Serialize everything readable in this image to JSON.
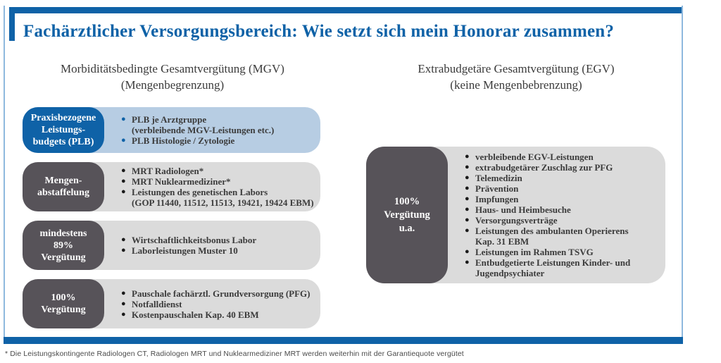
{
  "title": "Fachärztlicher Versorgungsbereich: Wie setzt sich mein Honorar zusammen?",
  "colors": {
    "accent_blue": "#0f62a7",
    "light_blue": "#b7cde3",
    "hairline_blue": "#8fb9de",
    "dark_gray": "#575359",
    "light_gray": "#dbdbdb"
  },
  "bullet_glyph": "●",
  "left_column": {
    "heading": "Morbiditätsbedingte Gesamtvergütung (MGV)",
    "subheading": "(Mengenbegrenzung)",
    "rows": [
      {
        "style": "blue",
        "label_lines": [
          "Praxisbezogene",
          "Leistungs-",
          "budgets (PLB)"
        ],
        "items": [
          {
            "lines": [
              "PLB je Arztgruppe",
              "(verbleibende MGV-Leistungen etc.)"
            ]
          },
          {
            "lines": [
              "PLB Histologie / Zytologie"
            ]
          }
        ]
      },
      {
        "style": "gray",
        "label_lines": [
          "Mengen-",
          "abstaffelung"
        ],
        "items": [
          {
            "lines": [
              "MRT Radiologen*"
            ]
          },
          {
            "lines": [
              "MRT Nuklearmediziner*"
            ]
          },
          {
            "lines": [
              "Leistungen des genetischen Labors",
              "(GOP 11440, 11512, 11513, 19421, 19424 EBM)"
            ]
          }
        ]
      },
      {
        "style": "gray",
        "label_lines": [
          "mindestens",
          "89%",
          "Vergütung"
        ],
        "items": [
          {
            "lines": [
              "Wirtschaftlichkeitsbonus Labor"
            ]
          },
          {
            "lines": [
              "Laborleistungen Muster 10"
            ]
          }
        ]
      },
      {
        "style": "gray",
        "label_lines": [
          "100%",
          "Vergütung"
        ],
        "items": [
          {
            "lines": [
              "Pauschale fachärztl. Grundversorgung (PFG)"
            ]
          },
          {
            "lines": [
              "Notfalldienst"
            ]
          },
          {
            "lines": [
              "Kostenpauschalen Kap. 40 EBM"
            ]
          }
        ]
      }
    ]
  },
  "right_column": {
    "heading": "Extrabudgetäre Gesamtvergütung (EGV)",
    "subheading": "(keine Mengenbebrenzung)",
    "rows": [
      {
        "style": "gray",
        "label_lines": [
          "100%",
          "Vergütung",
          "u.a."
        ],
        "items": [
          {
            "lines": [
              "verbleibende EGV-Leistungen"
            ]
          },
          {
            "lines": [
              "extrabudgetärer Zuschlag zur PFG"
            ]
          },
          {
            "lines": [
              "Telemedizin"
            ]
          },
          {
            "lines": [
              "Prävention"
            ]
          },
          {
            "lines": [
              "Impfungen"
            ]
          },
          {
            "lines": [
              "Haus- und Heimbesuche"
            ]
          },
          {
            "lines": [
              "Versorgungsverträge"
            ]
          },
          {
            "lines": [
              "Leistungen des ambulanten Operierens",
              "Kap. 31 EBM"
            ]
          },
          {
            "lines": [
              "Leistungen im Rahmen TSVG"
            ]
          },
          {
            "lines": [
              "Entbudgetierte Leistungen Kinder- und",
              "Jugendpsychiater"
            ]
          }
        ]
      }
    ]
  },
  "footnote": "* Die Leistungskontingente Radiologen CT, Radiologen MRT und Nuklearmediziner MRT werden weiterhin mit der Garantiequote vergütet"
}
